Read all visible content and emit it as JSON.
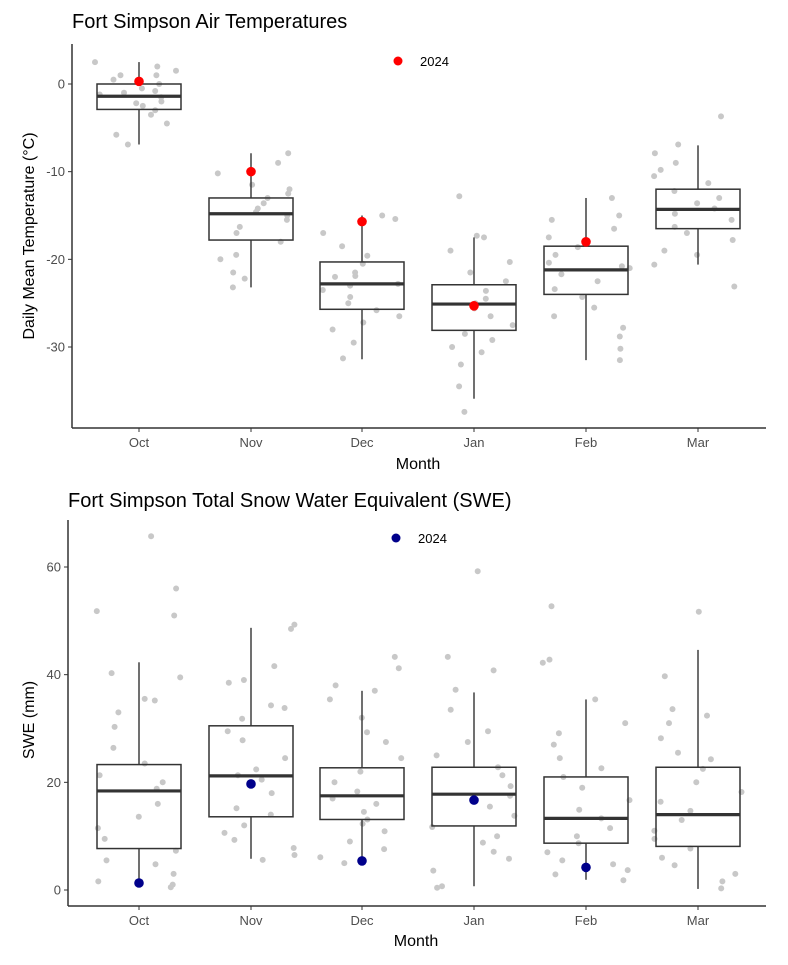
{
  "chart_data": [
    {
      "type": "box",
      "title": "Fort Simpson Air Temperatures",
      "xlabel": "Month",
      "ylabel": "Daily Mean Temperature (°C)",
      "categories": [
        "Oct",
        "Nov",
        "Dec",
        "Jan",
        "Feb",
        "Mar"
      ],
      "ylim": [
        -38.5,
        4.5
      ],
      "yticks": [
        0,
        -10,
        -20,
        -30
      ],
      "ytick_labels": [
        "0",
        "-10",
        "-20",
        "-30"
      ],
      "legend": {
        "label": "2024",
        "placement": "top-center"
      },
      "highlight_color": "#ff0000",
      "point_color": "#c8c8c8",
      "boxes": [
        {
          "month": "Oct",
          "lower_whisker": -6.9,
          "q1": -2.9,
          "median": -1.4,
          "q3": 0.0,
          "upper_whisker": 2.5
        },
        {
          "month": "Nov",
          "lower_whisker": -23.2,
          "q1": -17.8,
          "median": -14.8,
          "q3": -13.0,
          "upper_whisker": -7.9
        },
        {
          "month": "Dec",
          "lower_whisker": -31.4,
          "q1": -25.7,
          "median": -22.8,
          "q3": -20.3,
          "upper_whisker": -15.0
        },
        {
          "month": "Jan",
          "lower_whisker": -35.9,
          "q1": -28.1,
          "median": -25.1,
          "q3": -22.9,
          "upper_whisker": -17.5
        },
        {
          "month": "Feb",
          "lower_whisker": -31.5,
          "q1": -24.0,
          "median": -21.2,
          "q3": -18.5,
          "upper_whisker": -13.0
        },
        {
          "month": "Mar",
          "lower_whisker": -20.6,
          "q1": -16.5,
          "median": -14.3,
          "q3": -12.0,
          "upper_whisker": -7.0
        }
      ],
      "highlight_2024": [
        0.3,
        -10.0,
        -15.7,
        -25.3,
        -18.0,
        null
      ],
      "points": [
        [
          2.5,
          1.5,
          1,
          0.5,
          0,
          -0.5,
          -1,
          -1.5,
          -2,
          -2.5,
          -3,
          -3.5,
          -4.5,
          -5.8,
          -6.9,
          2,
          1,
          -1.2,
          -0.8,
          -2.2
        ],
        [
          -7.9,
          -9,
          -10.2,
          -11.5,
          -12.5,
          -13,
          -13.6,
          -14.2,
          -15,
          -15.5,
          -16.3,
          -17,
          -18,
          -19.5,
          -20,
          -21.5,
          -22.2,
          -23.2,
          -12,
          -14.6
        ],
        [
          -15,
          -15.4,
          -17,
          -18.5,
          -19.6,
          -20.5,
          -21.5,
          -22,
          -22.8,
          -23.5,
          -24.3,
          -25,
          -25.8,
          -26.5,
          -27.2,
          -28,
          -29.5,
          -31.3,
          -23,
          -21.9
        ],
        [
          -12.8,
          -17.3,
          -17.5,
          -19,
          -20.3,
          -21.5,
          -22.5,
          -23.6,
          -24.5,
          -25,
          -25.6,
          -26.5,
          -27.5,
          -28.5,
          -29.2,
          -30,
          -30.6,
          -32,
          -34.5,
          -37.4
        ],
        [
          -13,
          -15,
          -15.5,
          -16.5,
          -17.5,
          -18.6,
          -19.5,
          -20.4,
          -21,
          -21.7,
          -22.5,
          -23.4,
          -24.3,
          -25.5,
          -26.5,
          -27.8,
          -28.8,
          -30.2,
          -31.5,
          -20.8
        ],
        [
          -3.7,
          -6.9,
          -7.9,
          -9,
          -9.8,
          -10.5,
          -11.3,
          -12.2,
          -13,
          -13.6,
          -14.2,
          -14.8,
          -15.5,
          -16.3,
          -17,
          -17.8,
          -19,
          -19.5,
          -20.6,
          -23.1
        ]
      ]
    },
    {
      "type": "box",
      "title": "Fort Simpson Total Snow Water Equivalent (SWE)",
      "xlabel": "Month",
      "ylabel": "SWE (mm)",
      "categories": [
        "Oct",
        "Nov",
        "Dec",
        "Jan",
        "Feb",
        "Mar"
      ],
      "ylim": [
        -3,
        69
      ],
      "yticks": [
        0,
        20,
        40,
        60
      ],
      "ytick_labels": [
        "0",
        "20",
        "40",
        "60"
      ],
      "legend": {
        "label": "2024",
        "placement": "top-center"
      },
      "highlight_color": "#00008b",
      "point_color": "#c8c8c8",
      "boxes": [
        {
          "month": "Oct",
          "lower_whisker": 0.5,
          "q1": 7.7,
          "median": 18.4,
          "q3": 23.3,
          "upper_whisker": 42.3
        },
        {
          "month": "Nov",
          "lower_whisker": 5.8,
          "q1": 13.6,
          "median": 21.2,
          "q3": 30.5,
          "upper_whisker": 48.7
        },
        {
          "month": "Dec",
          "lower_whisker": 5.0,
          "q1": 13.1,
          "median": 17.5,
          "q3": 22.7,
          "upper_whisker": 37.0
        },
        {
          "month": "Jan",
          "lower_whisker": 0.7,
          "q1": 11.9,
          "median": 17.8,
          "q3": 22.8,
          "upper_whisker": 36.7
        },
        {
          "month": "Feb",
          "lower_whisker": 1.9,
          "q1": 8.7,
          "median": 13.3,
          "q3": 21.0,
          "upper_whisker": 35.4
        },
        {
          "month": "Mar",
          "lower_whisker": 0.2,
          "q1": 8.1,
          "median": 14.0,
          "q3": 22.8,
          "upper_whisker": 44.6
        }
      ],
      "highlight_2024": [
        1.3,
        19.7,
        5.4,
        16.7,
        4.2,
        null
      ],
      "points": [
        [
          65.7,
          56,
          51.8,
          51,
          40.3,
          39.5,
          35.5,
          35.2,
          33,
          30.3,
          26.4,
          23.5,
          21.3,
          20,
          18.8,
          16,
          13.6,
          11.5,
          9.5,
          7.3,
          5.5,
          4.8,
          3,
          1.6,
          1,
          0.5
        ],
        [
          49.3,
          48.5,
          41.6,
          39,
          38.5,
          34.3,
          33.8,
          31.8,
          29.5,
          27.8,
          24.5,
          22.4,
          21.3,
          20.5,
          18,
          15.2,
          14,
          12,
          10.6,
          9.3,
          7.8,
          6.5,
          5.6
        ],
        [
          43.3,
          41.2,
          38,
          37,
          35.4,
          32,
          29.3,
          27.5,
          24.5,
          22,
          20,
          18.3,
          17,
          16,
          14.5,
          13.1,
          12.3,
          10.9,
          9,
          7.6,
          6.1,
          5
        ],
        [
          59.2,
          43.3,
          40.8,
          37.2,
          33.5,
          29.5,
          27.5,
          25,
          22.8,
          21.3,
          19.3,
          17.5,
          15.5,
          13.8,
          11.7,
          10,
          8.8,
          7.1,
          5.8,
          3.6,
          0.7,
          0.4
        ],
        [
          52.7,
          42.8,
          42.2,
          35.4,
          31,
          29.1,
          27,
          24.5,
          22.6,
          21,
          19,
          16.7,
          14.9,
          13.3,
          11.5,
          10,
          8.7,
          7,
          5.5,
          4.8,
          3.7,
          2.9,
          1.8
        ],
        [
          51.7,
          39.7,
          33.6,
          32.4,
          31,
          28.2,
          25.5,
          24.3,
          22.5,
          20,
          18.2,
          16.4,
          14.7,
          13,
          11,
          9.5,
          7.7,
          6,
          4.6,
          3,
          1.6,
          0.3
        ]
      ]
    }
  ]
}
